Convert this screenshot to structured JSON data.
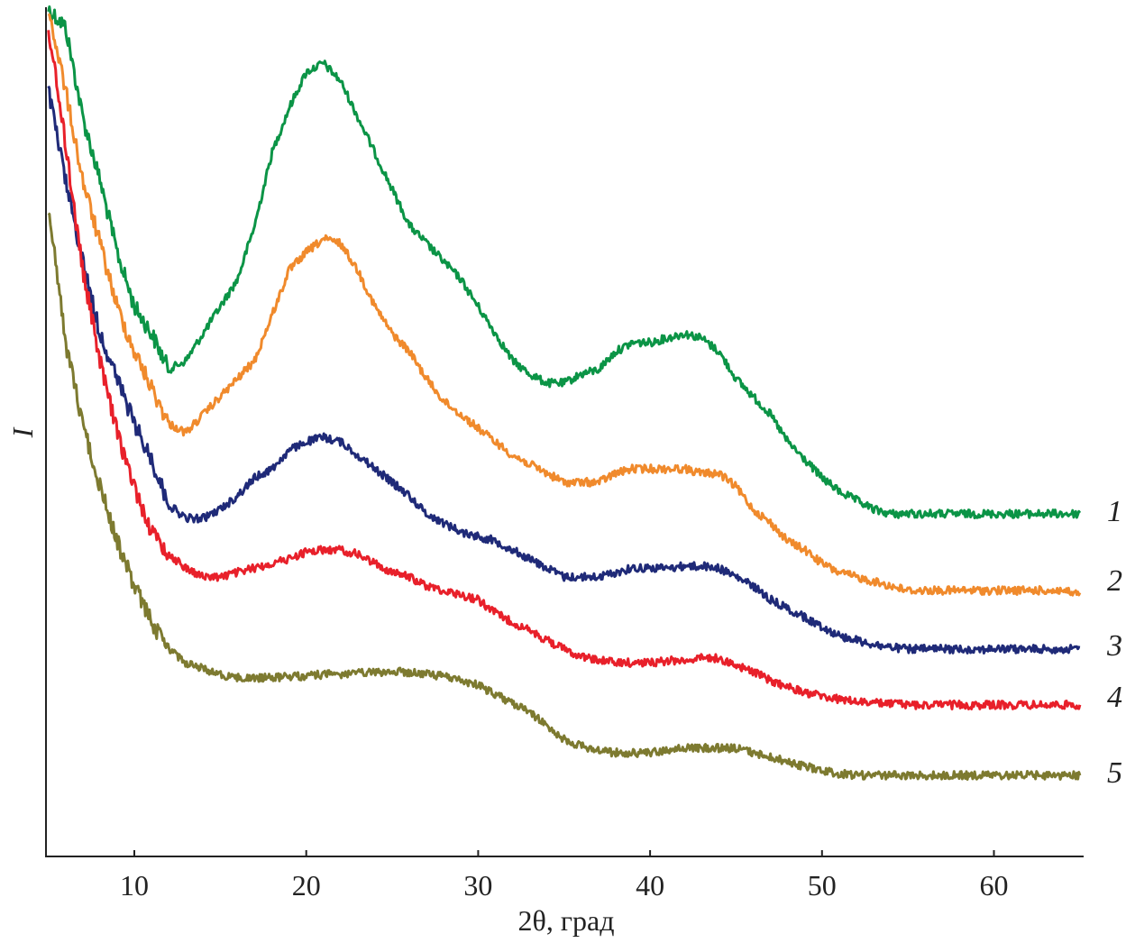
{
  "chart_data": {
    "type": "line",
    "title": "",
    "xlabel": "2θ, град",
    "ylabel": "I",
    "xlim": [
      5,
      65
    ],
    "ylim": [
      0,
      94
    ],
    "xticks": [
      10,
      20,
      30,
      40,
      50,
      60
    ],
    "xtick_labels": [
      "10",
      "20",
      "30",
      "40",
      "50",
      "60"
    ],
    "grid": false,
    "legend": "inline-right",
    "x": [
      5,
      6,
      7,
      8,
      9,
      10,
      11,
      12,
      13,
      14,
      15,
      16,
      17,
      18,
      19,
      20,
      21,
      22,
      23,
      24,
      25,
      26,
      27,
      28,
      29,
      30,
      31,
      32,
      33,
      34,
      35,
      36,
      37,
      38,
      39,
      40,
      41,
      42,
      43,
      44,
      45,
      46,
      47,
      48,
      49,
      50,
      51,
      52,
      53,
      54,
      55,
      56,
      57,
      58,
      59,
      60,
      61,
      62,
      63,
      64,
      65
    ],
    "series": [
      {
        "name": "1",
        "color": "#0b9446",
        "values": [
          94,
          92,
          82,
          75,
          67,
          61,
          58,
          54,
          55,
          58,
          61,
          64,
          70,
          78,
          83,
          87,
          88,
          86,
          82,
          78,
          74,
          70,
          68,
          66,
          64,
          61,
          58,
          55,
          53.5,
          52.5,
          52.5,
          53.5,
          54,
          56,
          57,
          57,
          57.5,
          58,
          57.5,
          56,
          53,
          51,
          49,
          46,
          44,
          42,
          40.5,
          39.5,
          38.5,
          38,
          38,
          38,
          38,
          38,
          38,
          38,
          38,
          38,
          38,
          38,
          38
        ]
      },
      {
        "name": "2",
        "color": "#f08a2c",
        "values": [
          94,
          85,
          75,
          68,
          61,
          56,
          52,
          48,
          47,
          49,
          51,
          53,
          55,
          60,
          65,
          67,
          68.5,
          68,
          65,
          61,
          58,
          56,
          53,
          50.5,
          49,
          47.5,
          46,
          44.5,
          43.5,
          42.5,
          41.5,
          41.5,
          41.5,
          42.5,
          43,
          43,
          43,
          43,
          42.5,
          42.5,
          41,
          38.5,
          37,
          35,
          34,
          32.5,
          31.5,
          31,
          30.5,
          30,
          29.5,
          29.5,
          29.5,
          29.5,
          29.5,
          29.5,
          29.5,
          29.5,
          29.5,
          29.5,
          29
        ]
      },
      {
        "name": "3",
        "color": "#1f2a78",
        "values": [
          85,
          75,
          66,
          58,
          53,
          48,
          44,
          39,
          37.5,
          37.5,
          38.5,
          40,
          42,
          43,
          45,
          46,
          46.5,
          46,
          44.5,
          43,
          41.5,
          40,
          38,
          37,
          36,
          35.5,
          35,
          34,
          33,
          32,
          31,
          31,
          31,
          31.5,
          32,
          32,
          32,
          32.2,
          32.2,
          32,
          31,
          30,
          28.5,
          27.5,
          26.5,
          25.5,
          24.5,
          24,
          23.5,
          23.2,
          23,
          23,
          23,
          23,
          23,
          23,
          23,
          23,
          23,
          23,
          23
        ]
      },
      {
        "name": "4",
        "color": "#e8202a",
        "values": [
          92,
          79,
          65,
          55,
          47,
          41,
          36,
          33.5,
          32,
          31,
          31,
          31.5,
          32,
          32.5,
          33,
          33.8,
          34,
          34,
          33.5,
          32.5,
          31.5,
          31,
          30,
          29.5,
          29,
          28.5,
          27,
          26,
          25,
          24,
          23,
          22.2,
          21.8,
          21.5,
          21.5,
          21.5,
          21.7,
          21.8,
          22,
          22,
          21.2,
          20.5,
          19.5,
          18.8,
          18.2,
          17.8,
          17.4,
          17.2,
          17,
          17,
          16.8,
          16.8,
          16.8,
          16.8,
          16.8,
          16.8,
          16.8,
          16.8,
          16.8,
          16.8,
          16.8
        ]
      },
      {
        "name": "5",
        "color": "#7d7a30",
        "values": [
          72,
          57,
          48,
          41,
          35,
          30,
          26,
          23,
          21.5,
          20.8,
          20.2,
          19.8,
          19.8,
          19.8,
          20,
          20,
          20.2,
          20.2,
          20.3,
          20.4,
          20.5,
          20.4,
          20.2,
          20,
          19.5,
          19,
          18,
          17,
          16,
          14.5,
          13,
          12.2,
          11.8,
          11.5,
          11.5,
          11.5,
          11.8,
          12,
          12,
          12,
          12,
          11.5,
          11,
          10.5,
          10,
          9.5,
          9.2,
          9,
          9,
          9,
          9,
          9,
          9,
          9,
          9,
          9,
          9,
          9,
          9,
          9,
          9
        ]
      }
    ]
  }
}
